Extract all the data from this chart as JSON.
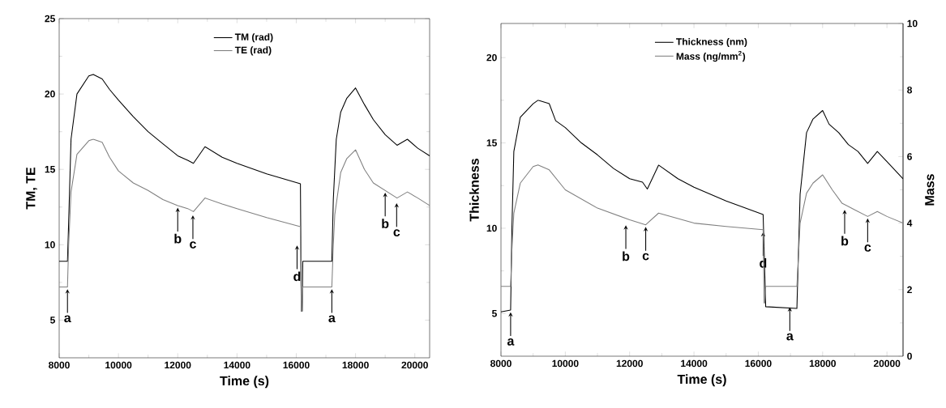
{
  "chart_data": [
    {
      "type": "line",
      "xlabel": "Time (s)",
      "ylabel": "TM, TE",
      "xlim": [
        8000,
        20500
      ],
      "xticks": [
        8000,
        10000,
        12000,
        14000,
        16000,
        18000,
        20000
      ],
      "ylim": [
        2.5,
        25
      ],
      "yticks": [
        5,
        10,
        15,
        20,
        25
      ],
      "legend": "top",
      "series": [
        {
          "name": "TM (rad)",
          "color": "#000000",
          "x": [
            8000,
            8280,
            8320,
            8400,
            8600,
            9000,
            9150,
            9450,
            9700,
            10000,
            10500,
            11000,
            11500,
            12000,
            12336,
            12530,
            12920,
            13500,
            14000,
            15000,
            16140,
            16170,
            16200,
            16220,
            17200,
            17250,
            17350,
            17500,
            17700,
            18000,
            18300,
            18600,
            19000,
            19400,
            19750,
            20100,
            20500
          ],
          "values": [
            8.9,
            8.9,
            11.5,
            17,
            20,
            21.2,
            21.3,
            21.0,
            20.3,
            19.6,
            18.5,
            17.5,
            16.7,
            15.9,
            15.6,
            15.4,
            16.5,
            15.8,
            15.4,
            14.7,
            14.05,
            5.6,
            5.6,
            8.9,
            8.9,
            13,
            17,
            18.8,
            19.7,
            20.4,
            19.3,
            18.3,
            17.3,
            16.6,
            17.0,
            16.4,
            15.9
          ]
        },
        {
          "name": "TE (rad)",
          "color": "#808080",
          "x": [
            8000,
            8280,
            8320,
            8400,
            8600,
            9000,
            9150,
            9450,
            9700,
            10000,
            10500,
            11000,
            11500,
            12000,
            12336,
            12530,
            12920,
            13500,
            14000,
            15000,
            16140,
            16170,
            16200,
            16220,
            17200,
            17250,
            17300,
            17500,
            17700,
            18000,
            18300,
            18600,
            19000,
            19400,
            19750,
            20100,
            20500
          ],
          "values": [
            7.2,
            7.2,
            10,
            13.5,
            16,
            16.9,
            17.0,
            16.8,
            15.8,
            14.9,
            14.1,
            13.6,
            13.0,
            12.6,
            12.4,
            12.2,
            13.1,
            12.7,
            12.4,
            11.8,
            11.2,
            5.6,
            5.6,
            7.2,
            7.2,
            10,
            12,
            14.8,
            15.7,
            16.3,
            15.0,
            14.1,
            13.6,
            13.1,
            13.5,
            13.1,
            12.6
          ]
        }
      ],
      "annotations": [
        {
          "text": "a",
          "x": 8280,
          "y": 7.2
        },
        {
          "text": "b",
          "x": 12000,
          "y": 12.6
        },
        {
          "text": "c",
          "x": 12512,
          "y": 12.1
        },
        {
          "text": "d",
          "x": 16027,
          "y": 10.1
        },
        {
          "text": "a",
          "x": 17200,
          "y": 7.2
        },
        {
          "text": "b",
          "x": 19000,
          "y": 13.6
        },
        {
          "text": "c",
          "x": 19387,
          "y": 12.9
        }
      ]
    },
    {
      "type": "line",
      "xlabel": "Time (s)",
      "ylabel": "Thickness",
      "y2label": "Mass",
      "xlim": [
        8000,
        20500
      ],
      "xticks": [
        8000,
        10000,
        12000,
        14000,
        16000,
        18000,
        20000
      ],
      "ylim": [
        2.5,
        22
      ],
      "yticks": [
        5,
        10,
        15,
        20
      ],
      "y2lim": [
        0,
        10
      ],
      "y2ticks": [
        0,
        2,
        4,
        6,
        8,
        10
      ],
      "legend": "top",
      "series": [
        {
          "name": "Thickness (nm)",
          "color": "#000000",
          "x": [
            8000,
            8300,
            8340,
            8400,
            8600,
            9000,
            9150,
            9500,
            9700,
            10000,
            10500,
            11000,
            11500,
            12000,
            12400,
            12550,
            12900,
            13500,
            14000,
            15000,
            16150,
            16180,
            16200,
            16230,
            17200,
            17300,
            17500,
            17700,
            18000,
            18200,
            18500,
            18800,
            19100,
            19400,
            19700,
            20000,
            20500
          ],
          "values": [
            5.1,
            5.2,
            10,
            14.5,
            16.5,
            17.3,
            17.5,
            17.3,
            16.3,
            15.9,
            15.0,
            14.3,
            13.5,
            12.9,
            12.7,
            12.3,
            13.7,
            12.9,
            12.4,
            11.6,
            10.8,
            null,
            null,
            5.4,
            5.3,
            12,
            15.6,
            16.4,
            16.9,
            16.1,
            15.6,
            14.9,
            14.5,
            13.8,
            14.5,
            13.9,
            12.9
          ]
        },
        {
          "name": "Mass (ng/mm$^{2}$)",
          "color": "#808080",
          "axis": "y2",
          "x": [
            8000,
            8300,
            8340,
            8400,
            8600,
            9000,
            9150,
            9500,
            10000,
            11000,
            12000,
            12500,
            12900,
            14000,
            15000,
            16150,
            16180,
            16200,
            16230,
            17200,
            17300,
            17500,
            17700,
            18000,
            18300,
            18600,
            19000,
            19400,
            19700,
            20000,
            20500
          ],
          "values": [
            2.1,
            2.1,
            3.2,
            4.3,
            5.2,
            5.7,
            5.75,
            5.6,
            5.0,
            4.45,
            4.1,
            3.95,
            4.3,
            4.0,
            3.9,
            3.8,
            1.6,
            1.6,
            2.1,
            2.1,
            4.0,
            4.9,
            5.2,
            5.45,
            5.0,
            4.6,
            4.4,
            4.2,
            4.35,
            4.2,
            4.0
          ]
        }
      ],
      "annotations": [
        {
          "text": "a",
          "x": 8300,
          "y": 5.2
        },
        {
          "text": "b",
          "x": 11882,
          "y": 10.3
        },
        {
          "text": "c",
          "x": 12500,
          "y": 10.2
        },
        {
          "text": "d",
          "x": 16150,
          "y": 9.9
        },
        {
          "text": "a",
          "x": 16980,
          "y": 5.5
        },
        {
          "text": "b",
          "x": 18685,
          "y": 11.2
        },
        {
          "text": "c",
          "x": 19400,
          "y": 10.7
        }
      ]
    }
  ]
}
